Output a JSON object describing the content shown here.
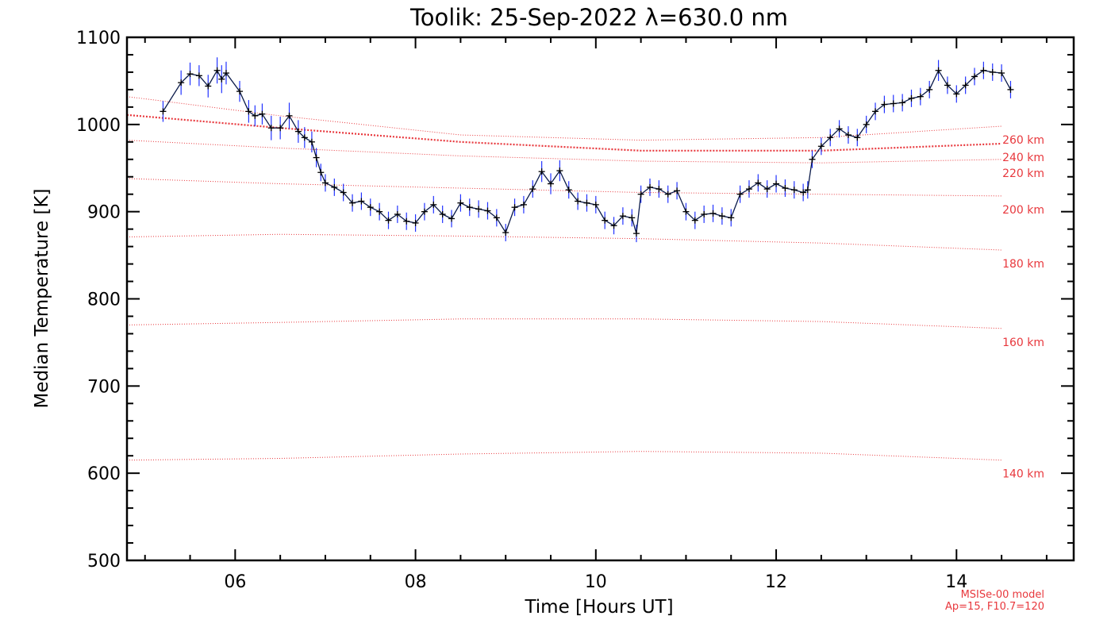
{
  "chart_data": {
    "type": "line",
    "title": "Toolik: 25-Sep-2022 λ=630.0 nm",
    "xlabel": "Time [Hours UT]",
    "ylabel": "Median Temperature [K]",
    "xlim": [
      4.8,
      15.3
    ],
    "ylim": [
      500,
      1100
    ],
    "x_ticks": [
      6,
      8,
      10,
      12,
      14
    ],
    "x_tick_labels": [
      "06",
      "08",
      "10",
      "12",
      "14"
    ],
    "y_ticks": [
      500,
      600,
      700,
      800,
      900,
      1000,
      1100
    ],
    "y_tick_labels": [
      "500",
      "600",
      "700",
      "800",
      "900",
      "1000",
      "1100"
    ],
    "grid": false,
    "colors": {
      "measurement": "#0a1a4a",
      "error_bar": "#2233ff",
      "model": "#e8383d"
    },
    "measurement": {
      "x": [
        5.2,
        5.4,
        5.5,
        5.6,
        5.7,
        5.8,
        5.85,
        5.9,
        6.05,
        6.15,
        6.22,
        6.3,
        6.4,
        6.5,
        6.6,
        6.7,
        6.77,
        6.85,
        6.9,
        6.95,
        7.0,
        7.1,
        7.2,
        7.3,
        7.4,
        7.5,
        7.6,
        7.7,
        7.8,
        7.9,
        8.0,
        8.1,
        8.2,
        8.3,
        8.4,
        8.5,
        8.6,
        8.7,
        8.8,
        8.9,
        9.0,
        9.1,
        9.2,
        9.3,
        9.4,
        9.5,
        9.6,
        9.7,
        9.8,
        9.9,
        10.0,
        10.1,
        10.2,
        10.3,
        10.4,
        10.45,
        10.5,
        10.6,
        10.7,
        10.8,
        10.9,
        11.0,
        11.1,
        11.2,
        11.3,
        11.4,
        11.5,
        11.6,
        11.7,
        11.8,
        11.9,
        12.0,
        12.1,
        12.2,
        12.3,
        12.35,
        12.4,
        12.5,
        12.6,
        12.7,
        12.8,
        12.9,
        13.0,
        13.1,
        13.2,
        13.3,
        13.4,
        13.5,
        13.6,
        13.7,
        13.8,
        13.9,
        14.0,
        14.1,
        14.2,
        14.3,
        14.4,
        14.5,
        14.6
      ],
      "y": [
        1015,
        1048,
        1058,
        1056,
        1044,
        1062,
        1052,
        1059,
        1038,
        1015,
        1010,
        1012,
        996,
        996,
        1010,
        992,
        985,
        980,
        962,
        945,
        933,
        928,
        922,
        910,
        912,
        905,
        900,
        890,
        897,
        889,
        887,
        900,
        908,
        897,
        892,
        910,
        905,
        903,
        901,
        893,
        876,
        905,
        908,
        926,
        946,
        932,
        947,
        925,
        912,
        910,
        908,
        890,
        884,
        895,
        893,
        875,
        920,
        928,
        926,
        920,
        924,
        900,
        890,
        897,
        898,
        895,
        893,
        920,
        926,
        933,
        926,
        932,
        927,
        925,
        922,
        925,
        960,
        975,
        985,
        995,
        988,
        985,
        1000,
        1015,
        1023,
        1024,
        1025,
        1030,
        1032,
        1040,
        1062,
        1045,
        1035,
        1045,
        1055,
        1062,
        1060,
        1059,
        1040
      ],
      "errors": [
        12,
        14,
        13,
        12,
        13,
        15,
        16,
        13,
        12,
        13,
        12,
        12,
        14,
        13,
        15,
        13,
        12,
        12,
        11,
        10,
        10,
        10,
        10,
        10,
        10,
        10,
        10,
        10,
        10,
        10,
        10,
        10,
        10,
        10,
        10,
        10,
        10,
        10,
        10,
        10,
        10,
        10,
        10,
        10,
        12,
        12,
        12,
        10,
        10,
        10,
        10,
        10,
        10,
        10,
        10,
        10,
        10,
        10,
        10,
        10,
        10,
        10,
        10,
        10,
        10,
        10,
        10,
        10,
        10,
        10,
        10,
        10,
        10,
        10,
        10,
        10,
        10,
        10,
        10,
        10,
        10,
        10,
        10,
        10,
        10,
        10,
        10,
        10,
        10,
        10,
        12,
        10,
        10,
        10,
        10,
        10,
        10,
        10,
        10
      ]
    },
    "model_series": [
      {
        "name": "260 km",
        "x": [
          4.8,
          6.5,
          8.5,
          10.5,
          12.5,
          14.5
        ],
        "y": [
          1032,
          1010,
          988,
          982,
          985,
          998
        ]
      },
      {
        "name": "240 km",
        "x": [
          4.8,
          6.5,
          8.5,
          10.5,
          12.5,
          14.5
        ],
        "y": [
          1011,
          996,
          980,
          970,
          970,
          978
        ],
        "emphasized": true
      },
      {
        "name": "220 km",
        "x": [
          4.8,
          6.5,
          8.5,
          10.5,
          12.5,
          14.5
        ],
        "y": [
          982,
          973,
          964,
          958,
          956,
          960
        ]
      },
      {
        "name": "200 km",
        "x": [
          4.8,
          6.5,
          8.5,
          10.5,
          12.5,
          14.5
        ],
        "y": [
          938,
          932,
          927,
          922,
          920,
          918
        ]
      },
      {
        "name": "180 km",
        "x": [
          4.8,
          6.5,
          8.5,
          10.5,
          12.5,
          14.5
        ],
        "y": [
          871,
          874,
          872,
          869,
          864,
          856
        ]
      },
      {
        "name": "160 km",
        "x": [
          4.8,
          6.5,
          8.5,
          10.5,
          12.5,
          14.5
        ],
        "y": [
          770,
          773,
          777,
          777,
          774,
          766
        ]
      },
      {
        "name": "140 km",
        "x": [
          4.8,
          6.5,
          8.5,
          10.5,
          12.5,
          14.5
        ],
        "y": [
          615,
          617,
          622,
          625,
          623,
          615
        ]
      }
    ],
    "model_label_notes": [
      "MSISe-00 model",
      "Ap=15, F10.7=120"
    ]
  }
}
